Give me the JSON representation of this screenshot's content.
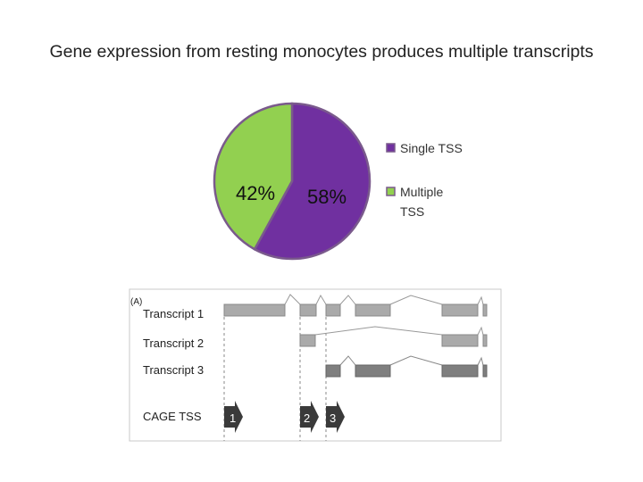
{
  "title": "Gene expression from resting monocytes produces multiple transcripts",
  "chart_data": {
    "type": "pie",
    "slices": [
      {
        "name": "Single TSS",
        "value": 58,
        "label": "58%",
        "color": "#7030a0"
      },
      {
        "name": "Multiple TSS",
        "value": 42,
        "label": "42%",
        "color": "#92d050"
      }
    ],
    "legend": {
      "position": "right",
      "entries": [
        {
          "lines": [
            "Single TSS"
          ],
          "color": "#7030a0"
        },
        {
          "lines": [
            "Multiple",
            "TSS"
          ],
          "color": "#92d050"
        }
      ]
    }
  },
  "diagram": {
    "panel_label": "(A)",
    "tracks": [
      "Transcript 1",
      "Transcript 2",
      "Transcript 3"
    ],
    "cage_label": "CAGE TSS",
    "tss_numbers": [
      "1",
      "2",
      "3"
    ]
  }
}
